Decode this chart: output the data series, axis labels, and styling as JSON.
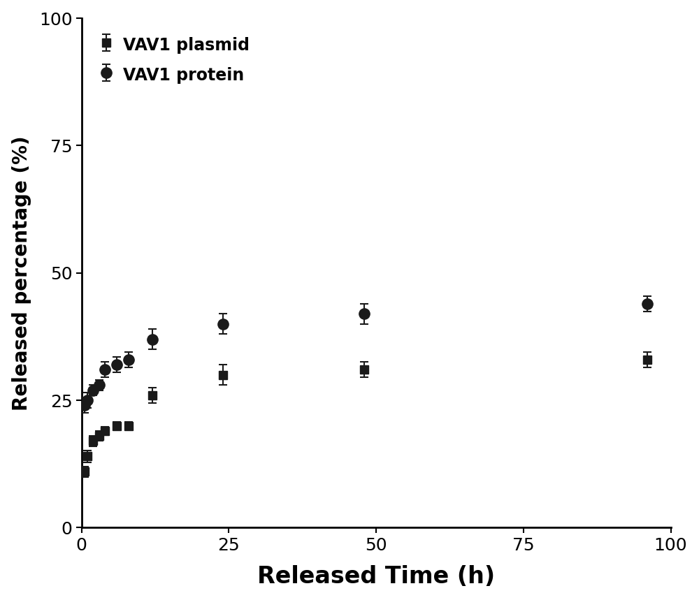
{
  "plasmid_x": [
    0.5,
    1,
    2,
    3,
    4,
    6,
    8,
    12,
    24,
    48,
    96
  ],
  "plasmid_y": [
    11,
    14,
    17,
    18,
    19,
    20,
    20,
    26,
    30,
    31,
    33
  ],
  "plasmid_yerr": [
    1.0,
    1.2,
    1.0,
    1.0,
    0.8,
    0.8,
    0.8,
    1.5,
    2.0,
    1.5,
    1.5
  ],
  "protein_x": [
    0.5,
    1,
    2,
    3,
    4,
    6,
    8,
    12,
    24,
    48,
    96
  ],
  "protein_y": [
    24,
    25,
    27,
    28,
    31,
    32,
    33,
    37,
    40,
    42,
    44
  ],
  "protein_yerr": [
    1.5,
    1.5,
    1.0,
    1.0,
    1.5,
    1.5,
    1.5,
    2.0,
    2.0,
    2.0,
    1.5
  ],
  "xlabel": "Released Time (h)",
  "ylabel": "Released percentage (%)",
  "legend_labels": [
    "VAV1 plasmid",
    "VAV1 protein"
  ],
  "xlim": [
    0,
    100
  ],
  "ylim": [
    0,
    100
  ],
  "xticks": [
    0,
    25,
    50,
    75,
    100
  ],
  "yticks": [
    0,
    25,
    50,
    75,
    100
  ],
  "color": "#1a1a1a",
  "bg_color": "#ffffff",
  "xlabel_fontsize": 24,
  "ylabel_fontsize": 20,
  "tick_fontsize": 18,
  "legend_fontsize": 17
}
